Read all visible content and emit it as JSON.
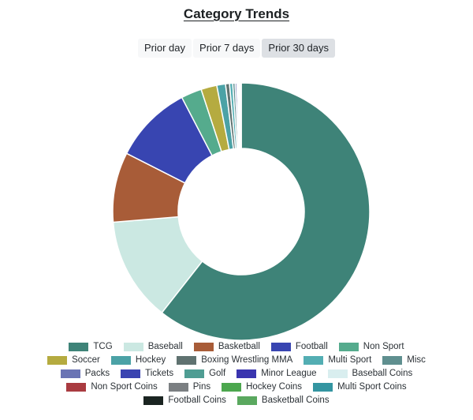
{
  "page": {
    "title": "Category Trends"
  },
  "tabs": {
    "items": [
      {
        "label": "Prior day",
        "selected": false
      },
      {
        "label": "Prior 7 days",
        "selected": false
      },
      {
        "label": "Prior 30 days",
        "selected": true
      }
    ]
  },
  "colors": {
    "background": "#ffffff",
    "text": "#212529",
    "tab_bg": "#f7f8f9",
    "tab_selected_bg": "#dde0e4",
    "slice_separator": "#ffffff"
  },
  "chart_data": {
    "type": "pie",
    "title": "Category Trends",
    "donut": true,
    "inner_radius_ratio": 0.49,
    "start_angle_deg": 0,
    "direction": "clockwise",
    "legend_position": "bottom",
    "units": "percent_share",
    "series": [
      {
        "label": "TCG",
        "value": 60.7,
        "color": "#3E8378"
      },
      {
        "label": "Baseball",
        "value": 13.1,
        "color": "#CBE8E2"
      },
      {
        "label": "Basketball",
        "value": 8.8,
        "color": "#A85C38"
      },
      {
        "label": "Football",
        "value": 9.9,
        "color": "#3845B1"
      },
      {
        "label": "Non Sport",
        "value": 2.6,
        "color": "#55AB8D"
      },
      {
        "label": "Soccer",
        "value": 2.0,
        "color": "#B5AB40"
      },
      {
        "label": "Hockey",
        "value": 1.1,
        "color": "#4BA2A6"
      },
      {
        "label": "Boxing Wrestling MMA",
        "value": 0.5,
        "color": "#5F7270"
      },
      {
        "label": "Multi Sport",
        "value": 0.4,
        "color": "#53AEB3"
      },
      {
        "label": "Misc",
        "value": 0.3,
        "color": "#5F8F8F"
      },
      {
        "label": "Packs",
        "value": 0.22,
        "color": "#6A74B4"
      },
      {
        "label": "Tickets",
        "value": 0.15,
        "color": "#3A44B1"
      },
      {
        "label": "Golf",
        "value": 0.1,
        "color": "#4F9D93"
      },
      {
        "label": "Minor League",
        "value": 0.1,
        "color": "#3A35AF"
      },
      {
        "label": "Baseball Coins",
        "value": 0.05,
        "color": "#D9EEEF"
      },
      {
        "label": "Non Sport Coins",
        "value": 0.04,
        "color": "#A93B40"
      },
      {
        "label": "Pins",
        "value": 0.03,
        "color": "#7B7F82"
      },
      {
        "label": "Hockey Coins",
        "value": 0.025,
        "color": "#4CA74E"
      },
      {
        "label": "Multi Sport Coins",
        "value": 0.02,
        "color": "#3495A1"
      },
      {
        "label": "Football Coins",
        "value": 0.015,
        "color": "#1A2421"
      },
      {
        "label": "Basketball Coins",
        "value": 0.01,
        "color": "#5AA85F"
      }
    ]
  }
}
